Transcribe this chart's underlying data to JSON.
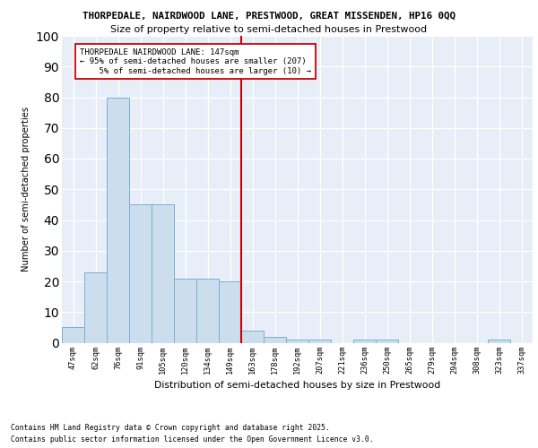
{
  "title1": "THORPEDALE, NAIRDWOOD LANE, PRESTWOOD, GREAT MISSENDEN, HP16 0QQ",
  "title2": "Size of property relative to semi-detached houses in Prestwood",
  "xlabel": "Distribution of semi-detached houses by size in Prestwood",
  "ylabel": "Number of semi-detached properties",
  "categories": [
    "47sqm",
    "62sqm",
    "76sqm",
    "91sqm",
    "105sqm",
    "120sqm",
    "134sqm",
    "149sqm",
    "163sqm",
    "178sqm",
    "192sqm",
    "207sqm",
    "221sqm",
    "236sqm",
    "250sqm",
    "265sqm",
    "279sqm",
    "294sqm",
    "308sqm",
    "323sqm",
    "337sqm"
  ],
  "values": [
    5,
    23,
    80,
    45,
    45,
    21,
    21,
    20,
    4,
    2,
    1,
    1,
    0,
    1,
    1,
    0,
    0,
    0,
    0,
    1,
    0
  ],
  "bar_color": "#ccdded",
  "bar_edge_color": "#7bafd4",
  "vline_color": "#cc0000",
  "annotation_line1": "THORPEDALE NAIRDWOOD LANE: 147sqm",
  "annotation_line2": "← 95% of semi-detached houses are smaller (207)",
  "annotation_line3": "5% of semi-detached houses are larger (10) →",
  "annotation_box_color": "#ffffff",
  "annotation_box_edge": "#cc0000",
  "ylim": [
    0,
    100
  ],
  "yticks": [
    0,
    10,
    20,
    30,
    40,
    50,
    60,
    70,
    80,
    90,
    100
  ],
  "background_color": "#e8eef8",
  "footer1": "Contains HM Land Registry data © Crown copyright and database right 2025.",
  "footer2": "Contains public sector information licensed under the Open Government Licence v3.0."
}
